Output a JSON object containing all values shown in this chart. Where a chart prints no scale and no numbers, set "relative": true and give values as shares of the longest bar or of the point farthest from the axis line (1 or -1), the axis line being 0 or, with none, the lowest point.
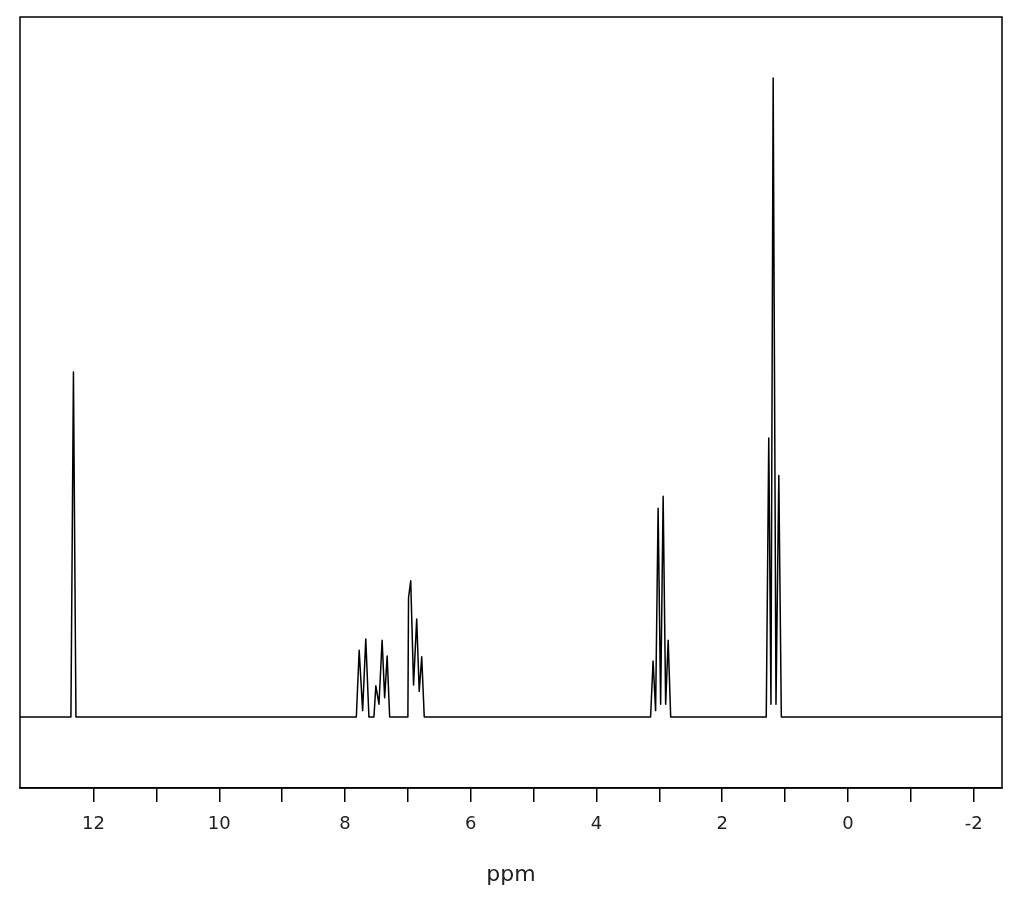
{
  "chart_data": {
    "type": "line",
    "xlabel": "ppm",
    "relative": true,
    "grid": false,
    "legend": false,
    "marker": "none",
    "line_style": "solid",
    "xlim": [
      13.17,
      -2.45
    ],
    "xticks": [
      12,
      {
        "value": 11,
        "label": null
      },
      10,
      {
        "value": 9,
        "label": null
      },
      8,
      {
        "value": 7,
        "label": null
      },
      6,
      {
        "value": 5,
        "label": null
      },
      4,
      {
        "value": 3,
        "label": null
      },
      2,
      {
        "value": 1,
        "label": null
      },
      0,
      {
        "value": -1,
        "label": null
      },
      -2
    ],
    "series": [
      {
        "color": "#000000",
        "x": [
          13.17,
          12.36,
          12.32,
          12.28,
          7.82,
          7.775,
          7.72,
          7.67,
          7.62,
          7.54,
          7.51,
          7.46,
          7.41,
          7.37,
          7.33,
          7.29,
          7.0,
          6.99,
          6.955,
          6.91,
          6.86,
          6.82,
          6.78,
          6.74,
          3.14,
          3.1,
          3.06,
          3.02,
          2.98,
          2.94,
          2.9,
          2.86,
          2.82,
          1.3,
          1.26,
          1.225,
          1.19,
          1.145,
          1.1,
          1.06,
          -2.45
        ],
        "values": [
          0.1,
          0.1,
          0.586,
          0.1,
          0.1,
          0.194,
          0.109,
          0.21,
          0.1,
          0.1,
          0.144,
          0.118,
          0.208,
          0.127,
          0.186,
          0.1,
          0.1,
          0.268,
          0.292,
          0.145,
          0.238,
          0.136,
          0.185,
          0.1,
          0.1,
          0.179,
          0.109,
          0.394,
          0.118,
          0.411,
          0.118,
          0.208,
          0.1,
          0.1,
          0.493,
          0.118,
          1.0,
          0.118,
          0.44,
          0.1,
          0.1
        ]
      }
    ]
  }
}
